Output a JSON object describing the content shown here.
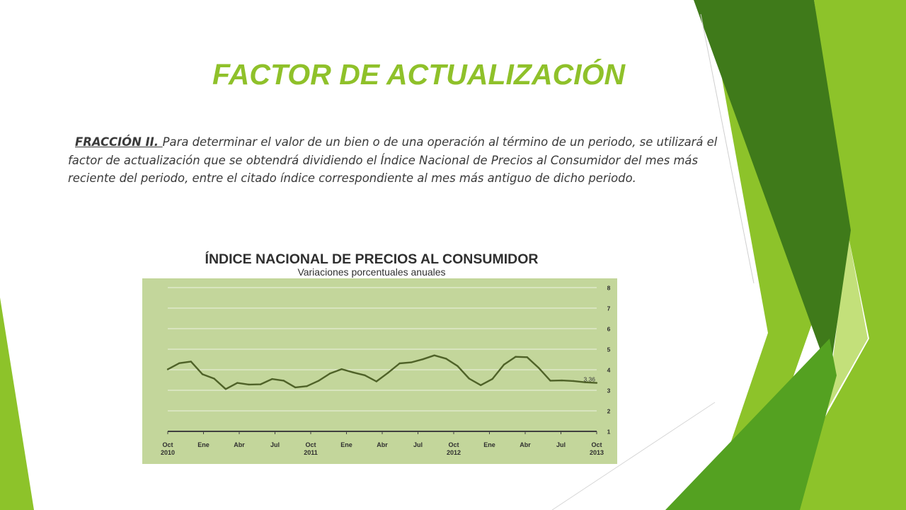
{
  "slide": {
    "title": "FACTOR DE ACTUALIZACIÓN",
    "paragraph_lead": "FRACCIÓN II. ",
    "paragraph_body": "Para determinar el valor de un bien o de una operación al término de un periodo, se utilizará el factor de actualización que se obtendrá dividiendo el Índice Nacional de Precios al Consumidor del mes más reciente del periodo, entre el citado   índice correspondiente al mes más antiguo de dicho periodo."
  },
  "colors": {
    "title": "#8fc12a",
    "text": "#3a3a3a",
    "chart_bg": "#c3d69b",
    "line": "#4f6228",
    "deco_dark": "#3f7a1a",
    "deco_mid": "#54a121",
    "deco_light": "#8dc32a",
    "deco_pale": "#c3e07a"
  },
  "chart_data": {
    "type": "line",
    "title": "ÍNDICE NACIONAL DE PRECIOS AL CONSUMIDOR",
    "subtitle": "Variaciones porcentuales anuales",
    "ylim": [
      1,
      8
    ],
    "yticks": [
      "1",
      "2",
      "3",
      "4",
      "5",
      "6",
      "7",
      "8"
    ],
    "ytick_values": [
      1,
      2,
      3,
      4,
      5,
      6,
      7,
      8
    ],
    "xticks": [
      [
        "Oct",
        "2010"
      ],
      [
        "Ene",
        ""
      ],
      [
        "Abr",
        ""
      ],
      [
        "Jul",
        ""
      ],
      [
        "Oct",
        "2011"
      ],
      [
        "Ene",
        ""
      ],
      [
        "Abr",
        ""
      ],
      [
        "Jul",
        ""
      ],
      [
        "Oct",
        "2012"
      ],
      [
        "Ene",
        ""
      ],
      [
        "Abr",
        ""
      ],
      [
        "Jul",
        ""
      ],
      [
        "Oct",
        "2013"
      ]
    ],
    "grid": true,
    "series": [
      {
        "values": [
          4.02,
          4.32,
          4.4,
          3.78,
          3.57,
          3.06,
          3.36,
          3.28,
          3.29,
          3.55,
          3.47,
          3.14,
          3.2,
          3.46,
          3.82,
          4.03,
          3.87,
          3.73,
          3.43,
          3.85,
          4.31,
          4.36,
          4.51,
          4.7,
          4.54,
          4.18,
          3.57,
          3.25,
          3.55,
          4.25,
          4.63,
          4.61,
          4.09,
          3.47,
          3.48,
          3.45,
          3.39,
          3.36
        ]
      }
    ],
    "annotation": {
      "text": "3.36",
      "index": 37
    }
  }
}
